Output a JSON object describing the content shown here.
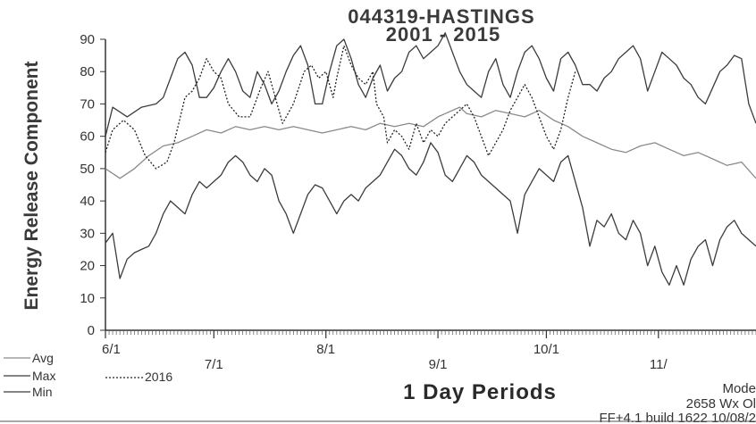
{
  "chart_data": {
    "type": "line",
    "title": "044319-HASTINGS",
    "subtitle": "2001 - 2015",
    "ylabel": "Energy Release Component",
    "xlabel": "1 Day Periods",
    "ylim": [
      0,
      90
    ],
    "yticks": [
      0,
      10,
      20,
      30,
      40,
      50,
      60,
      70,
      80,
      90
    ],
    "xlim": [
      0,
      180
    ],
    "x_ticks": [
      {
        "label": "6/1",
        "day": 0
      },
      {
        "label": "7/1",
        "day": 30
      },
      {
        "label": "8/1",
        "day": 61
      },
      {
        "label": "9/1",
        "day": 92
      },
      {
        "label": "10/1",
        "day": 122
      },
      {
        "label": "11/",
        "day": 153
      }
    ],
    "legend": [
      {
        "label": "Avg",
        "style": "solid-gray"
      },
      {
        "label": "Max",
        "style": "solid-dark"
      },
      {
        "label": "2016",
        "style": "dotted"
      },
      {
        "label": "Min",
        "style": "solid-dark"
      }
    ],
    "series": [
      {
        "name": "Max",
        "color": "#3c3c3c",
        "dash": "",
        "points": [
          [
            0,
            60
          ],
          [
            2,
            69
          ],
          [
            6,
            66
          ],
          [
            10,
            69
          ],
          [
            14,
            70
          ],
          [
            16,
            72
          ],
          [
            18,
            78
          ],
          [
            20,
            84
          ],
          [
            22,
            86
          ],
          [
            24,
            82
          ],
          [
            26,
            72
          ],
          [
            28,
            72
          ],
          [
            30,
            75
          ],
          [
            32,
            80
          ],
          [
            34,
            84
          ],
          [
            36,
            80
          ],
          [
            38,
            74
          ],
          [
            40,
            72
          ],
          [
            42,
            80
          ],
          [
            44,
            76
          ],
          [
            46,
            70
          ],
          [
            48,
            74
          ],
          [
            50,
            80
          ],
          [
            52,
            85
          ],
          [
            54,
            88
          ],
          [
            56,
            82
          ],
          [
            58,
            70
          ],
          [
            60,
            70
          ],
          [
            62,
            80
          ],
          [
            64,
            88
          ],
          [
            66,
            90
          ],
          [
            68,
            84
          ],
          [
            70,
            76
          ],
          [
            72,
            72
          ],
          [
            74,
            78
          ],
          [
            76,
            82
          ],
          [
            78,
            74
          ],
          [
            80,
            78
          ],
          [
            82,
            80
          ],
          [
            84,
            86
          ],
          [
            86,
            88
          ],
          [
            88,
            84
          ],
          [
            90,
            86
          ],
          [
            92,
            88
          ],
          [
            94,
            92
          ],
          [
            96,
            86
          ],
          [
            98,
            80
          ],
          [
            100,
            76
          ],
          [
            102,
            74
          ],
          [
            104,
            72
          ],
          [
            106,
            80
          ],
          [
            108,
            84
          ],
          [
            110,
            76
          ],
          [
            112,
            72
          ],
          [
            114,
            80
          ],
          [
            116,
            86
          ],
          [
            118,
            88
          ],
          [
            120,
            84
          ],
          [
            122,
            78
          ],
          [
            124,
            74
          ],
          [
            126,
            84
          ],
          [
            128,
            86
          ],
          [
            130,
            82
          ],
          [
            132,
            76
          ],
          [
            134,
            76
          ],
          [
            136,
            74
          ],
          [
            138,
            78
          ],
          [
            140,
            80
          ],
          [
            142,
            84
          ],
          [
            144,
            86
          ],
          [
            146,
            88
          ],
          [
            148,
            84
          ],
          [
            150,
            74
          ],
          [
            152,
            80
          ],
          [
            154,
            86
          ],
          [
            156,
            84
          ],
          [
            158,
            82
          ],
          [
            160,
            78
          ],
          [
            162,
            76
          ],
          [
            164,
            72
          ],
          [
            166,
            70
          ],
          [
            168,
            75
          ],
          [
            170,
            80
          ],
          [
            172,
            82
          ],
          [
            174,
            85
          ],
          [
            176,
            84
          ],
          [
            178,
            70
          ],
          [
            180,
            64
          ]
        ]
      },
      {
        "name": "Avg",
        "color": "#8a8a8a",
        "dash": "",
        "points": [
          [
            0,
            50
          ],
          [
            4,
            47
          ],
          [
            8,
            50
          ],
          [
            12,
            54
          ],
          [
            16,
            57
          ],
          [
            20,
            58
          ],
          [
            24,
            60
          ],
          [
            28,
            62
          ],
          [
            32,
            61
          ],
          [
            36,
            63
          ],
          [
            40,
            62
          ],
          [
            44,
            63
          ],
          [
            48,
            62
          ],
          [
            52,
            63
          ],
          [
            56,
            62
          ],
          [
            60,
            61
          ],
          [
            64,
            62
          ],
          [
            68,
            63
          ],
          [
            72,
            62
          ],
          [
            76,
            64
          ],
          [
            80,
            63
          ],
          [
            84,
            64
          ],
          [
            88,
            63
          ],
          [
            92,
            66
          ],
          [
            96,
            68
          ],
          [
            98,
            69
          ],
          [
            100,
            67
          ],
          [
            104,
            66
          ],
          [
            108,
            68
          ],
          [
            112,
            67
          ],
          [
            116,
            66
          ],
          [
            120,
            68
          ],
          [
            124,
            65
          ],
          [
            128,
            63
          ],
          [
            132,
            60
          ],
          [
            136,
            58
          ],
          [
            140,
            56
          ],
          [
            144,
            55
          ],
          [
            148,
            57
          ],
          [
            152,
            58
          ],
          [
            156,
            56
          ],
          [
            160,
            54
          ],
          [
            164,
            55
          ],
          [
            168,
            53
          ],
          [
            172,
            51
          ],
          [
            176,
            52
          ],
          [
            180,
            47
          ]
        ]
      },
      {
        "name": "2016",
        "color": "#222222",
        "dash": "2,2",
        "points": [
          [
            0,
            55
          ],
          [
            2,
            62
          ],
          [
            5,
            65
          ],
          [
            8,
            62
          ],
          [
            11,
            54
          ],
          [
            14,
            50
          ],
          [
            17,
            52
          ],
          [
            19,
            58
          ],
          [
            22,
            72
          ],
          [
            24,
            74
          ],
          [
            26,
            78
          ],
          [
            28,
            84
          ],
          [
            30,
            80
          ],
          [
            32,
            78
          ],
          [
            34,
            70
          ],
          [
            37,
            66
          ],
          [
            40,
            66
          ],
          [
            43,
            75
          ],
          [
            45,
            80
          ],
          [
            47,
            72
          ],
          [
            49,
            64
          ],
          [
            52,
            70
          ],
          [
            55,
            80
          ],
          [
            57,
            82
          ],
          [
            59,
            78
          ],
          [
            61,
            80
          ],
          [
            63,
            72
          ],
          [
            64,
            78
          ],
          [
            66,
            88
          ],
          [
            68,
            82
          ],
          [
            70,
            78
          ],
          [
            72,
            76
          ],
          [
            74,
            80
          ],
          [
            75,
            70
          ],
          [
            77,
            66
          ],
          [
            78,
            58
          ],
          [
            80,
            62
          ],
          [
            82,
            60
          ],
          [
            84,
            56
          ],
          [
            86,
            64
          ],
          [
            88,
            58
          ],
          [
            90,
            62
          ],
          [
            92,
            60
          ],
          [
            94,
            64
          ],
          [
            96,
            66
          ],
          [
            98,
            68
          ],
          [
            100,
            70
          ],
          [
            102,
            66
          ],
          [
            104,
            60
          ],
          [
            106,
            54
          ],
          [
            108,
            58
          ],
          [
            110,
            62
          ],
          [
            112,
            68
          ],
          [
            114,
            72
          ],
          [
            116,
            76
          ],
          [
            118,
            72
          ],
          [
            120,
            66
          ],
          [
            122,
            60
          ],
          [
            124,
            56
          ],
          [
            126,
            62
          ],
          [
            128,
            72
          ],
          [
            130,
            80
          ]
        ]
      },
      {
        "name": "Min",
        "color": "#3c3c3c",
        "dash": "",
        "points": [
          [
            0,
            27
          ],
          [
            2,
            30
          ],
          [
            4,
            16
          ],
          [
            6,
            22
          ],
          [
            8,
            24
          ],
          [
            10,
            25
          ],
          [
            12,
            26
          ],
          [
            14,
            30
          ],
          [
            16,
            36
          ],
          [
            18,
            40
          ],
          [
            20,
            38
          ],
          [
            22,
            36
          ],
          [
            24,
            42
          ],
          [
            26,
            46
          ],
          [
            28,
            44
          ],
          [
            30,
            46
          ],
          [
            32,
            48
          ],
          [
            34,
            52
          ],
          [
            36,
            54
          ],
          [
            38,
            52
          ],
          [
            40,
            48
          ],
          [
            42,
            46
          ],
          [
            44,
            50
          ],
          [
            46,
            48
          ],
          [
            48,
            40
          ],
          [
            50,
            36
          ],
          [
            52,
            30
          ],
          [
            54,
            36
          ],
          [
            56,
            42
          ],
          [
            58,
            45
          ],
          [
            60,
            44
          ],
          [
            62,
            40
          ],
          [
            64,
            36
          ],
          [
            66,
            40
          ],
          [
            68,
            42
          ],
          [
            70,
            40
          ],
          [
            72,
            44
          ],
          [
            74,
            46
          ],
          [
            76,
            48
          ],
          [
            78,
            52
          ],
          [
            80,
            56
          ],
          [
            82,
            54
          ],
          [
            84,
            50
          ],
          [
            86,
            48
          ],
          [
            88,
            52
          ],
          [
            90,
            58
          ],
          [
            92,
            55
          ],
          [
            94,
            48
          ],
          [
            96,
            46
          ],
          [
            98,
            50
          ],
          [
            100,
            54
          ],
          [
            102,
            52
          ],
          [
            104,
            48
          ],
          [
            106,
            46
          ],
          [
            108,
            44
          ],
          [
            110,
            42
          ],
          [
            112,
            40
          ],
          [
            114,
            30
          ],
          [
            116,
            42
          ],
          [
            118,
            46
          ],
          [
            120,
            50
          ],
          [
            122,
            48
          ],
          [
            124,
            46
          ],
          [
            126,
            52
          ],
          [
            128,
            54
          ],
          [
            130,
            46
          ],
          [
            132,
            38
          ],
          [
            134,
            26
          ],
          [
            136,
            34
          ],
          [
            138,
            32
          ],
          [
            140,
            36
          ],
          [
            142,
            30
          ],
          [
            144,
            28
          ],
          [
            146,
            34
          ],
          [
            148,
            30
          ],
          [
            150,
            20
          ],
          [
            152,
            26
          ],
          [
            154,
            18
          ],
          [
            156,
            14
          ],
          [
            158,
            20
          ],
          [
            160,
            14
          ],
          [
            162,
            22
          ],
          [
            164,
            26
          ],
          [
            166,
            28
          ],
          [
            168,
            20
          ],
          [
            170,
            28
          ],
          [
            172,
            32
          ],
          [
            174,
            34
          ],
          [
            176,
            30
          ],
          [
            178,
            28
          ],
          [
            180,
            26
          ]
        ]
      }
    ]
  },
  "footer": {
    "right_line1": "Mode",
    "right_line2": "2658 Wx Ol",
    "right_line3": "FF+4.1 build 1622 10/08/2"
  }
}
